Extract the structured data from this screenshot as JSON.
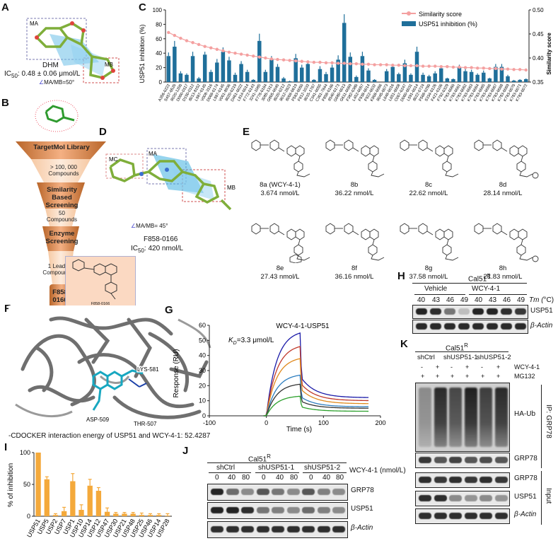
{
  "panels": {
    "a": "A",
    "b": "B",
    "c": "C",
    "d": "D",
    "e": "E",
    "f": "F",
    "g": "G",
    "h": "H",
    "i": "I",
    "j": "J",
    "k": "K"
  },
  "panel_a": {
    "region1": "MA",
    "region2": "MB",
    "compound": "DHM",
    "ic50_prefix": "IC",
    "ic50_sub": "50",
    "ic50_value": ": 0.48 ± 0.06 μmol/L",
    "angle": "MA/MB=50°"
  },
  "panel_b": {
    "stages": [
      {
        "label": "TargetMol Library",
        "count": "> 100, 000\nCompounds"
      },
      {
        "label": "Similarity\nBased Screening",
        "count": "50\nCompounds"
      },
      {
        "label": "Enzyme\nScreening",
        "count": "1 Lead\nCompound"
      },
      {
        "label": "F858\n0166"
      }
    ],
    "inset_label": "F858-0166"
  },
  "panel_d": {
    "regions": [
      "MC",
      "MA",
      "MB"
    ],
    "angle": "MA/MB= 45°",
    "compound": "F858-0166",
    "ic50_prefix": "IC",
    "ic50_sub": "50",
    "ic50_value": ":  420 nmol/L"
  },
  "panel_e": {
    "compounds": [
      {
        "name": "8a (WCY-4-1)",
        "ic50": "3.674 nmol/L"
      },
      {
        "name": "8b",
        "ic50": "36.22 nmol/L"
      },
      {
        "name": "8c",
        "ic50": "22.62 nmol/L"
      },
      {
        "name": "8d",
        "ic50": "28.14 nmol/L"
      },
      {
        "name": "8e",
        "ic50": "27.43 nmol/L"
      },
      {
        "name": "8f",
        "ic50": "36.16 nmol/L"
      },
      {
        "name": "8g",
        "ic50": "37.58 nmol/L"
      },
      {
        "name": "8h",
        "ic50": "21.83 nmol/L"
      }
    ]
  },
  "panel_f": {
    "residues": [
      "LYS-581",
      "ASP-509",
      "THR-507"
    ],
    "caption": "-CDOCKER interaction energy of USP51 and WCY-4-1:  52.4287"
  },
  "panel_h": {
    "cell_line": "Cal51",
    "cell_sup": "R",
    "groups": [
      "Vehicle",
      "WCY-4-1"
    ],
    "temps": [
      "40",
      "43",
      "46",
      "49",
      "40",
      "43",
      "46",
      "49"
    ],
    "tm_label": "Tm (",
    "tm_unit": "C)",
    "bands": [
      "USP51",
      "β-Actin"
    ],
    "usp51_intensity": [
      0.95,
      0.9,
      0.55,
      0.2,
      0.95,
      0.95,
      0.9,
      0.85
    ]
  },
  "panel_j": {
    "cell_line": "Cal51",
    "cell_sup": "R",
    "groups": [
      "shCtrl",
      "shUSP51-1",
      "shUSP51-2"
    ],
    "treatment": "WCY-4-1 (nmol/L)",
    "doses": [
      "0",
      "40",
      "80",
      "0",
      "40",
      "80",
      "0",
      "40",
      "80"
    ],
    "bands": [
      "GRP78",
      "USP51",
      "β-Actin"
    ]
  },
  "panel_k": {
    "cell_line": "Cal51",
    "cell_sup": "R",
    "groups": [
      "shCtrl",
      "shUSP51-1",
      "shUSP51-2"
    ],
    "rows": [
      {
        "label": "WCY-4-1",
        "values": [
          "-",
          "+",
          "-",
          "+",
          "-",
          "+"
        ]
      },
      {
        "label": "MG132",
        "values": [
          "+",
          "+",
          "+",
          "+",
          "+",
          "+"
        ]
      }
    ],
    "ip_label": "IP: GRP78",
    "input_label": "Input",
    "bands": [
      "HA-Ub",
      "GRP78",
      "GRP78",
      "USP51",
      "β-Actin"
    ]
  },
  "chart_data": [
    {
      "id": "C",
      "type": "bar",
      "ylabel": "USP51 inhibition (%)",
      "y2label": "Similarity score",
      "ylim": [
        0,
        100
      ],
      "y2lim": [
        0.35,
        0.5
      ],
      "yticks": [
        "0",
        "20",
        "40",
        "60",
        "80",
        "100"
      ],
      "y2ticks": [
        "0.35",
        "0.40",
        "0.45",
        "0.50"
      ],
      "legend_position": "top-right",
      "series": [
        {
          "name": "Similarity score",
          "kind": "line",
          "color": "#f4a0a0",
          "values": [
            0.453,
            0.447,
            0.441,
            0.436,
            0.432,
            0.428,
            0.424,
            0.421,
            0.418,
            0.415,
            0.412,
            0.41,
            0.408,
            0.406,
            0.404,
            0.402,
            0.4,
            0.398,
            0.397,
            0.396,
            0.395,
            0.394,
            0.393,
            0.392,
            0.391,
            0.391,
            0.39,
            0.39,
            0.389,
            0.389,
            0.388,
            0.388,
            0.387,
            0.387,
            0.386,
            0.386,
            0.386,
            0.385,
            0.385,
            0.384,
            0.384,
            0.384,
            0.383,
            0.383,
            0.383,
            0.382,
            0.382,
            0.381,
            0.381,
            0.38,
            0.38,
            0.379,
            0.379,
            0.378,
            0.378,
            0.377,
            0.377,
            0.376,
            0.376,
            0.375
          ]
        },
        {
          "name": "USP51 inhibition (%)",
          "kind": "bar",
          "color": "#1f6f9a",
          "values": [
            36,
            49,
            12,
            10,
            36,
            5,
            38,
            14,
            27,
            42,
            30,
            10,
            25,
            14,
            3,
            57,
            14,
            31,
            21,
            5,
            1,
            33,
            20,
            25,
            3,
            18,
            11,
            20,
            31,
            82,
            35,
            7,
            36,
            16,
            3,
            0,
            15,
            21,
            11,
            26,
            10,
            42,
            10,
            8,
            12,
            19,
            5,
            4,
            20,
            15,
            14,
            10,
            13,
            5,
            21,
            21,
            8,
            2,
            3,
            4
          ],
          "errors": [
            5,
            8,
            3,
            2,
            6,
            2,
            4,
            3,
            5,
            6,
            5,
            3,
            4,
            3,
            1,
            10,
            3,
            5,
            4,
            2,
            1,
            6,
            4,
            5,
            1,
            4,
            3,
            4,
            6,
            12,
            6,
            2,
            6,
            3,
            1,
            0,
            3,
            4,
            2,
            5,
            2,
            7,
            3,
            2,
            3,
            4,
            1,
            1,
            4,
            3,
            3,
            2,
            3,
            1,
            4,
            4,
            2,
            1,
            1,
            1
          ]
        }
      ],
      "categories": [
        "A356-0222",
        "S457-0520",
        "8020-1200",
        "D060-0117",
        "D150-0112",
        "8013-8152",
        "L987-0145",
        "V008-3116",
        "D068-0174",
        "L987-0145",
        "V001-8936",
        "8020-0219",
        "D461-0022",
        "L814-0014",
        "F772-0143",
        "3241-1085",
        "F778-0164",
        "3085-1313",
        "G805-0040",
        "8020-0212",
        "8012-2823",
        "8008-0619",
        "F583-0050",
        "F812-1033",
        "8015-1767",
        "C341-0055",
        "C301-7844",
        "F858-0166",
        "8540-0173",
        "G680-0013",
        "G611-0069",
        "F382-0380",
        "L452-0057",
        "F938-0014",
        "F922-0032",
        "K808-0066",
        "8045-0073",
        "L648-0016",
        "L651-0008",
        "C067-0247",
        "D060-0031",
        "L591-0014",
        "8022-0724",
        "F568-0290",
        "S334-0126",
        "F421-0106",
        "F792-0329",
        "K783-0060",
        "K783-0061",
        "K783-0062",
        "K783-0063",
        "K783-0064",
        "K783-0065",
        "K783-0066",
        "K783-0067",
        "K783-0068",
        "K783-0069",
        "K783-0070",
        "K783-0071",
        "K783-0072"
      ]
    },
    {
      "id": "G",
      "type": "line",
      "title": "WCY-4-1-USP51",
      "annotation_prefix": "K",
      "annotation_sub": "D",
      "annotation_value": "=3.3 μmol/L",
      "xlabel": "Time (s)",
      "ylabel": "Response (RU)",
      "xlim": [
        -100,
        200
      ],
      "ylim": [
        0,
        60
      ],
      "xticks": [
        "-100",
        "0",
        "100",
        "200"
      ],
      "yticks": [
        "0",
        "10",
        "20",
        "30",
        "40",
        "50",
        "60"
      ],
      "series": [
        {
          "color": "#1a1aa8",
          "plateau": 55,
          "end": 12
        },
        {
          "color": "#c0392b",
          "plateau": 46,
          "end": 10
        },
        {
          "color": "#e08a1e",
          "plateau": 38,
          "end": 8
        },
        {
          "color": "#2d7dbf",
          "plateau": 27,
          "end": 6
        },
        {
          "color": "#333333",
          "plateau": 21,
          "end": 5
        },
        {
          "color": "#2ca02c",
          "plateau": 13,
          "end": 3
        }
      ]
    },
    {
      "id": "I",
      "type": "bar",
      "ylabel": "% of inhibition",
      "ylim": [
        0,
        100
      ],
      "yticks": [
        "0",
        "50",
        "100"
      ],
      "color": "#f4a93b",
      "categories": [
        "USP51",
        "USP5",
        "USP2",
        "USP7",
        "USP1",
        "USP10",
        "USP14",
        "USP12",
        "USP47",
        "USP30",
        "USP21",
        "USP48",
        "USP25",
        "USP46",
        "USP14",
        "USP28"
      ],
      "values": [
        100,
        58,
        2,
        8,
        55,
        10,
        48,
        40,
        7,
        4,
        4,
        4,
        2,
        2,
        2,
        1
      ],
      "errors": [
        0,
        4,
        2,
        6,
        12,
        8,
        10,
        5,
        6,
        2,
        2,
        2,
        3,
        2,
        2,
        3
      ]
    }
  ]
}
